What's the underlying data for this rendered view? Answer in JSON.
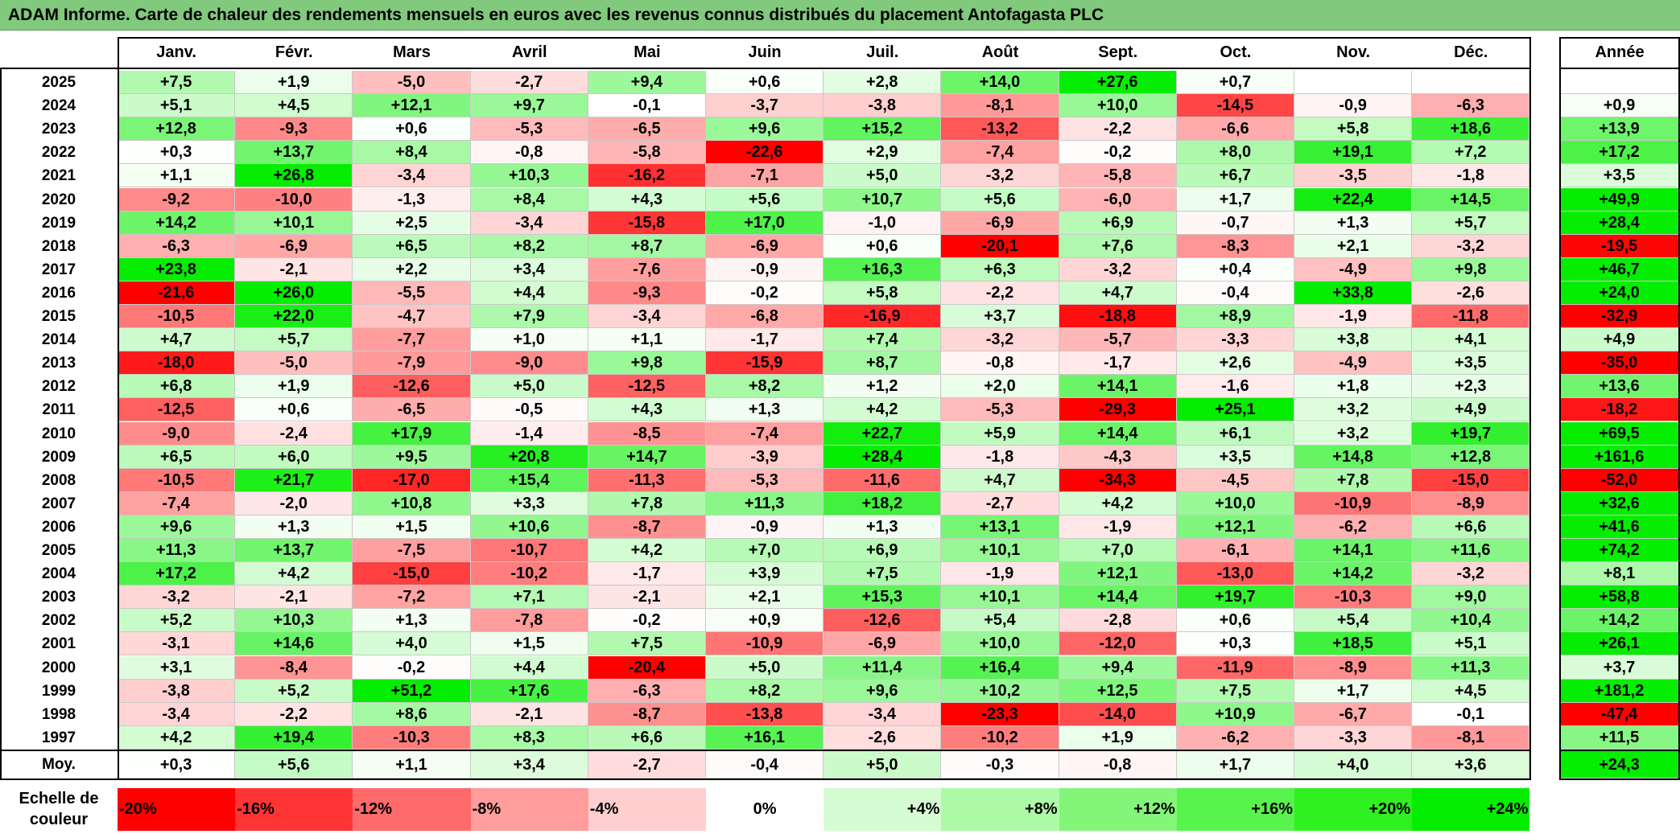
{
  "title": "ADAM Informe. Carte de chaleur des rendements mensuels en euros avec les revenus connus distribués du placement Antofagasta PLC",
  "chart_data": {
    "type": "heatmap",
    "title": "ADAM Informe. Carte de chaleur des rendements mensuels en euros avec les revenus connus distribués du placement Antofagasta PLC",
    "columns": [
      "Janv.",
      "Févr.",
      "Mars",
      "Avril",
      "Mai",
      "Juin",
      "Juil.",
      "Août",
      "Sept.",
      "Oct.",
      "Nov.",
      "Déc."
    ],
    "year_column_label": "Année",
    "rows": [
      {
        "label": "2025",
        "values": [
          "+7,5",
          "+1,9",
          "-5,0",
          "-2,7",
          "+9,4",
          "+0,6",
          "+2,8",
          "+14,0",
          "+27,6",
          "+0,7",
          "",
          ""
        ],
        "year": ""
      },
      {
        "label": "2024",
        "values": [
          "+5,1",
          "+4,5",
          "+12,1",
          "+9,7",
          "-0,1",
          "-3,7",
          "-3,8",
          "-8,1",
          "+10,0",
          "-14,5",
          "-0,9",
          "-6,3"
        ],
        "year": "+0,9"
      },
      {
        "label": "2023",
        "values": [
          "+12,8",
          "-9,3",
          "+0,6",
          "-5,3",
          "-6,5",
          "+9,6",
          "+15,2",
          "-13,2",
          "-2,2",
          "-6,6",
          "+5,8",
          "+18,6"
        ],
        "year": "+13,9"
      },
      {
        "label": "2022",
        "values": [
          "+0,3",
          "+13,7",
          "+8,4",
          "-0,8",
          "-5,8",
          "-22,6",
          "+2,9",
          "-7,4",
          "-0,2",
          "+8,0",
          "+19,1",
          "+7,2"
        ],
        "year": "+17,2"
      },
      {
        "label": "2021",
        "values": [
          "+1,1",
          "+26,8",
          "-3,4",
          "+10,3",
          "-16,2",
          "-7,1",
          "+5,0",
          "-3,2",
          "-5,8",
          "+6,7",
          "-3,5",
          "-1,8"
        ],
        "year": "+3,5"
      },
      {
        "label": "2020",
        "values": [
          "-9,2",
          "-10,0",
          "-1,3",
          "+8,4",
          "+4,3",
          "+5,6",
          "+10,7",
          "+5,6",
          "-6,0",
          "+1,7",
          "+22,4",
          "+14,5"
        ],
        "year": "+49,9"
      },
      {
        "label": "2019",
        "values": [
          "+14,2",
          "+10,1",
          "+2,5",
          "-3,4",
          "-15,8",
          "+17,0",
          "-1,0",
          "-6,9",
          "+6,9",
          "-0,7",
          "+1,3",
          "+5,7"
        ],
        "year": "+28,4"
      },
      {
        "label": "2018",
        "values": [
          "-6,3",
          "-6,9",
          "+6,5",
          "+8,2",
          "+8,7",
          "-6,9",
          "+0,6",
          "-20,1",
          "+7,6",
          "-8,3",
          "+2,1",
          "-3,2"
        ],
        "year": "-19,5"
      },
      {
        "label": "2017",
        "values": [
          "+23,8",
          "-2,1",
          "+2,2",
          "+3,4",
          "-7,6",
          "-0,9",
          "+16,3",
          "+6,3",
          "-3,2",
          "+0,4",
          "-4,9",
          "+9,8"
        ],
        "year": "+46,7"
      },
      {
        "label": "2016",
        "values": [
          "-21,6",
          "+26,0",
          "-5,5",
          "+4,4",
          "-9,3",
          "-0,2",
          "+5,8",
          "-2,2",
          "+4,7",
          "-0,4",
          "+33,8",
          "-2,6"
        ],
        "year": "+24,0"
      },
      {
        "label": "2015",
        "values": [
          "-10,5",
          "+22,0",
          "-4,7",
          "+7,9",
          "-3,4",
          "-6,8",
          "-16,9",
          "+3,7",
          "-18,8",
          "+8,9",
          "-1,9",
          "-11,8"
        ],
        "year": "-32,9"
      },
      {
        "label": "2014",
        "values": [
          "+4,7",
          "+5,7",
          "-7,7",
          "+1,0",
          "+1,1",
          "-1,7",
          "+7,4",
          "-3,2",
          "-5,7",
          "-3,3",
          "+3,8",
          "+4,1"
        ],
        "year": "+4,9"
      },
      {
        "label": "2013",
        "values": [
          "-18,0",
          "-5,0",
          "-7,9",
          "-9,0",
          "+9,8",
          "-15,9",
          "+8,7",
          "-0,8",
          "-1,7",
          "+2,6",
          "-4,9",
          "+3,5"
        ],
        "year": "-35,0"
      },
      {
        "label": "2012",
        "values": [
          "+6,8",
          "+1,9",
          "-12,6",
          "+5,0",
          "-12,5",
          "+8,2",
          "+1,2",
          "+2,0",
          "+14,1",
          "-1,6",
          "+1,8",
          "+2,3"
        ],
        "year": "+13,6"
      },
      {
        "label": "2011",
        "values": [
          "-12,5",
          "+0,6",
          "-6,5",
          "-0,5",
          "+4,3",
          "+1,3",
          "+4,2",
          "-5,3",
          "-29,3",
          "+25,1",
          "+3,2",
          "+4,9"
        ],
        "year": "-18,2"
      },
      {
        "label": "2010",
        "values": [
          "-9,0",
          "-2,4",
          "+17,9",
          "-1,4",
          "-8,5",
          "-7,4",
          "+22,7",
          "+5,9",
          "+14,4",
          "+6,1",
          "+3,2",
          "+19,7"
        ],
        "year": "+69,5"
      },
      {
        "label": "2009",
        "values": [
          "+6,5",
          "+6,0",
          "+9,5",
          "+20,8",
          "+14,7",
          "-3,9",
          "+28,4",
          "-1,8",
          "-4,3",
          "+3,5",
          "+14,8",
          "+12,8"
        ],
        "year": "+161,6"
      },
      {
        "label": "2008",
        "values": [
          "-10,5",
          "+21,7",
          "-17,0",
          "+15,4",
          "-11,3",
          "-5,3",
          "-11,6",
          "+4,7",
          "-34,3",
          "-4,5",
          "+7,8",
          "-15,0"
        ],
        "year": "-52,0"
      },
      {
        "label": "2007",
        "values": [
          "-7,4",
          "-2,0",
          "+10,8",
          "+3,3",
          "+7,8",
          "+11,3",
          "+18,2",
          "-2,7",
          "+4,2",
          "+10,0",
          "-10,9",
          "-8,9"
        ],
        "year": "+32,6"
      },
      {
        "label": "2006",
        "values": [
          "+9,6",
          "+1,3",
          "+1,5",
          "+10,6",
          "-8,7",
          "-0,9",
          "+1,3",
          "+13,1",
          "-1,9",
          "+12,1",
          "-6,2",
          "+6,6"
        ],
        "year": "+41,6"
      },
      {
        "label": "2005",
        "values": [
          "+11,3",
          "+13,7",
          "-7,5",
          "-10,7",
          "+4,2",
          "+7,0",
          "+6,9",
          "+10,1",
          "+7,0",
          "-6,1",
          "+14,1",
          "+11,6"
        ],
        "year": "+74,2"
      },
      {
        "label": "2004",
        "values": [
          "+17,2",
          "+4,2",
          "-15,0",
          "-10,2",
          "-1,7",
          "+3,9",
          "+7,5",
          "-1,9",
          "+12,1",
          "-13,0",
          "+14,2",
          "-3,2"
        ],
        "year": "+8,1"
      },
      {
        "label": "2003",
        "values": [
          "-3,2",
          "-2,1",
          "-7,2",
          "+7,1",
          "-2,1",
          "+2,1",
          "+15,3",
          "+10,1",
          "+14,4",
          "+19,7",
          "-10,3",
          "+9,0"
        ],
        "year": "+58,8"
      },
      {
        "label": "2002",
        "values": [
          "+5,2",
          "+10,3",
          "+1,3",
          "-7,8",
          "-0,2",
          "+0,9",
          "-12,6",
          "+5,4",
          "-2,8",
          "+0,6",
          "+5,4",
          "+10,4"
        ],
        "year": "+14,2"
      },
      {
        "label": "2001",
        "values": [
          "-3,1",
          "+14,6",
          "+4,0",
          "+1,5",
          "+7,5",
          "-10,9",
          "-6,9",
          "+10,0",
          "-12,0",
          "+0,3",
          "+18,5",
          "+5,1"
        ],
        "year": "+26,1"
      },
      {
        "label": "2000",
        "values": [
          "+3,1",
          "-8,4",
          "-0,2",
          "+4,4",
          "-20,4",
          "+5,0",
          "+11,4",
          "+16,4",
          "+9,4",
          "-11,9",
          "-8,9",
          "+11,3"
        ],
        "year": "+3,7"
      },
      {
        "label": "1999",
        "values": [
          "-3,8",
          "+5,2",
          "+51,2",
          "+17,6",
          "-6,3",
          "+8,2",
          "+9,6",
          "+10,2",
          "+12,5",
          "+7,5",
          "+1,7",
          "+4,5"
        ],
        "year": "+181,2"
      },
      {
        "label": "1998",
        "values": [
          "-3,4",
          "-2,2",
          "+8,6",
          "-2,1",
          "-8,7",
          "-13,8",
          "-3,4",
          "-23,3",
          "-14,0",
          "+10,9",
          "-6,7",
          "-0,1"
        ],
        "year": "-47,4"
      },
      {
        "label": "1997",
        "values": [
          "+4,2",
          "+19,4",
          "-10,3",
          "+8,3",
          "+6,6",
          "+16,1",
          "-2,6",
          "-10,2",
          "+1,9",
          "-6,2",
          "-3,3",
          "-8,1"
        ],
        "year": "+11,5"
      }
    ],
    "average_row": {
      "label": "Moy.",
      "values": [
        "+0,3",
        "+5,6",
        "+1,1",
        "+3,4",
        "-2,7",
        "-0,4",
        "+5,0",
        "-0,3",
        "-0,8",
        "+1,7",
        "+4,0",
        "+3,6"
      ],
      "year": "+24,3"
    },
    "scale": {
      "label_line1": "Echelle de",
      "label_line2": "couleur",
      "steps": [
        {
          "label": "-20%",
          "value": -20,
          "color": "#ff0000"
        },
        {
          "label": "-16%",
          "value": -16,
          "color": "#ff3535"
        },
        {
          "label": "-12%",
          "value": -12,
          "color": "#ff6a6a"
        },
        {
          "label": "-8%",
          "value": -8,
          "color": "#ff9c9c"
        },
        {
          "label": "-4%",
          "value": -4,
          "color": "#ffcfcf"
        },
        {
          "label": "0%",
          "value": 0,
          "color": "#ffffff"
        },
        {
          "label": "+4%",
          "value": 4,
          "color": "#d6fcd3"
        },
        {
          "label": "+8%",
          "value": 8,
          "color": "#acf9a6"
        },
        {
          "label": "+12%",
          "value": 12,
          "color": "#83f67a"
        },
        {
          "label": "+16%",
          "value": 16,
          "color": "#59f34d"
        },
        {
          "label": "+20%",
          "value": 20,
          "color": "#2ff021"
        },
        {
          "label": "+24%",
          "value": 24,
          "color": "#05ed00"
        }
      ]
    },
    "colors": {
      "negative_max": "#ff0000",
      "neutral": "#ffffff",
      "positive_max": "#05ed00",
      "title_bar": "#81c97c"
    }
  }
}
